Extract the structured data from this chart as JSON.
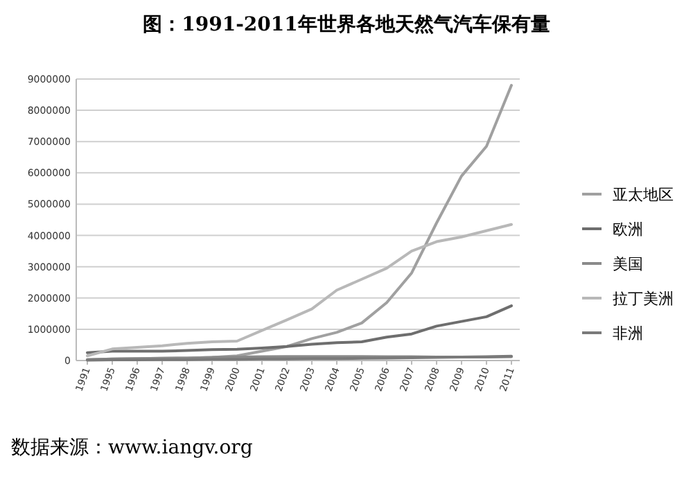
{
  "chart_data": {
    "type": "line",
    "title": "图：1991-2011年世界各地天然气汽车保有量",
    "annotations": [
      "数据来源：www.iangv.org"
    ],
    "categories": [
      "1991",
      "1995",
      "1996",
      "1997",
      "1998",
      "1999",
      "2000",
      "2001",
      "2002",
      "2003",
      "2004",
      "2005",
      "2006",
      "2007",
      "2008",
      "2009",
      "2010",
      "2011"
    ],
    "series": [
      {
        "name": "亚太地区",
        "color": "#a0a0a0",
        "values": [
          30000,
          50000,
          60000,
          70000,
          80000,
          100000,
          150000,
          300000,
          450000,
          700000,
          900000,
          1200000,
          1850000,
          2800000,
          4400000,
          5900000,
          6850000,
          8800000
        ]
      },
      {
        "name": "欧洲",
        "color": "#6e6e6e",
        "values": [
          250000,
          300000,
          300000,
          300000,
          320000,
          350000,
          360000,
          400000,
          450000,
          520000,
          570000,
          600000,
          750000,
          850000,
          1100000,
          1250000,
          1400000,
          1750000
        ]
      },
      {
        "name": "美国",
        "color": "#8a8a8a",
        "values": [
          30000,
          50000,
          60000,
          70000,
          80000,
          100000,
          110000,
          120000,
          130000,
          130000,
          130000,
          130000,
          120000,
          120000,
          110000,
          110000,
          110000,
          120000
        ]
      },
      {
        "name": "拉丁美洲",
        "color": "#b8b8b8",
        "values": [
          150000,
          370000,
          420000,
          470000,
          550000,
          600000,
          620000,
          960000,
          1300000,
          1650000,
          2250000,
          2600000,
          2950000,
          3500000,
          3800000,
          3950000,
          4150000,
          4350000
        ]
      },
      {
        "name": "非洲",
        "color": "#7a7a7a",
        "values": [
          10000,
          20000,
          20000,
          30000,
          30000,
          40000,
          40000,
          50000,
          50000,
          60000,
          60000,
          70000,
          80000,
          90000,
          100000,
          110000,
          120000,
          140000
        ]
      }
    ],
    "ylim": [
      0,
      9000000
    ],
    "yticks": [
      0,
      1000000,
      2000000,
      3000000,
      4000000,
      5000000,
      6000000,
      7000000,
      8000000,
      9000000
    ],
    "grid": "y",
    "legend": "right",
    "marker": "none",
    "line_style": "solid"
  }
}
